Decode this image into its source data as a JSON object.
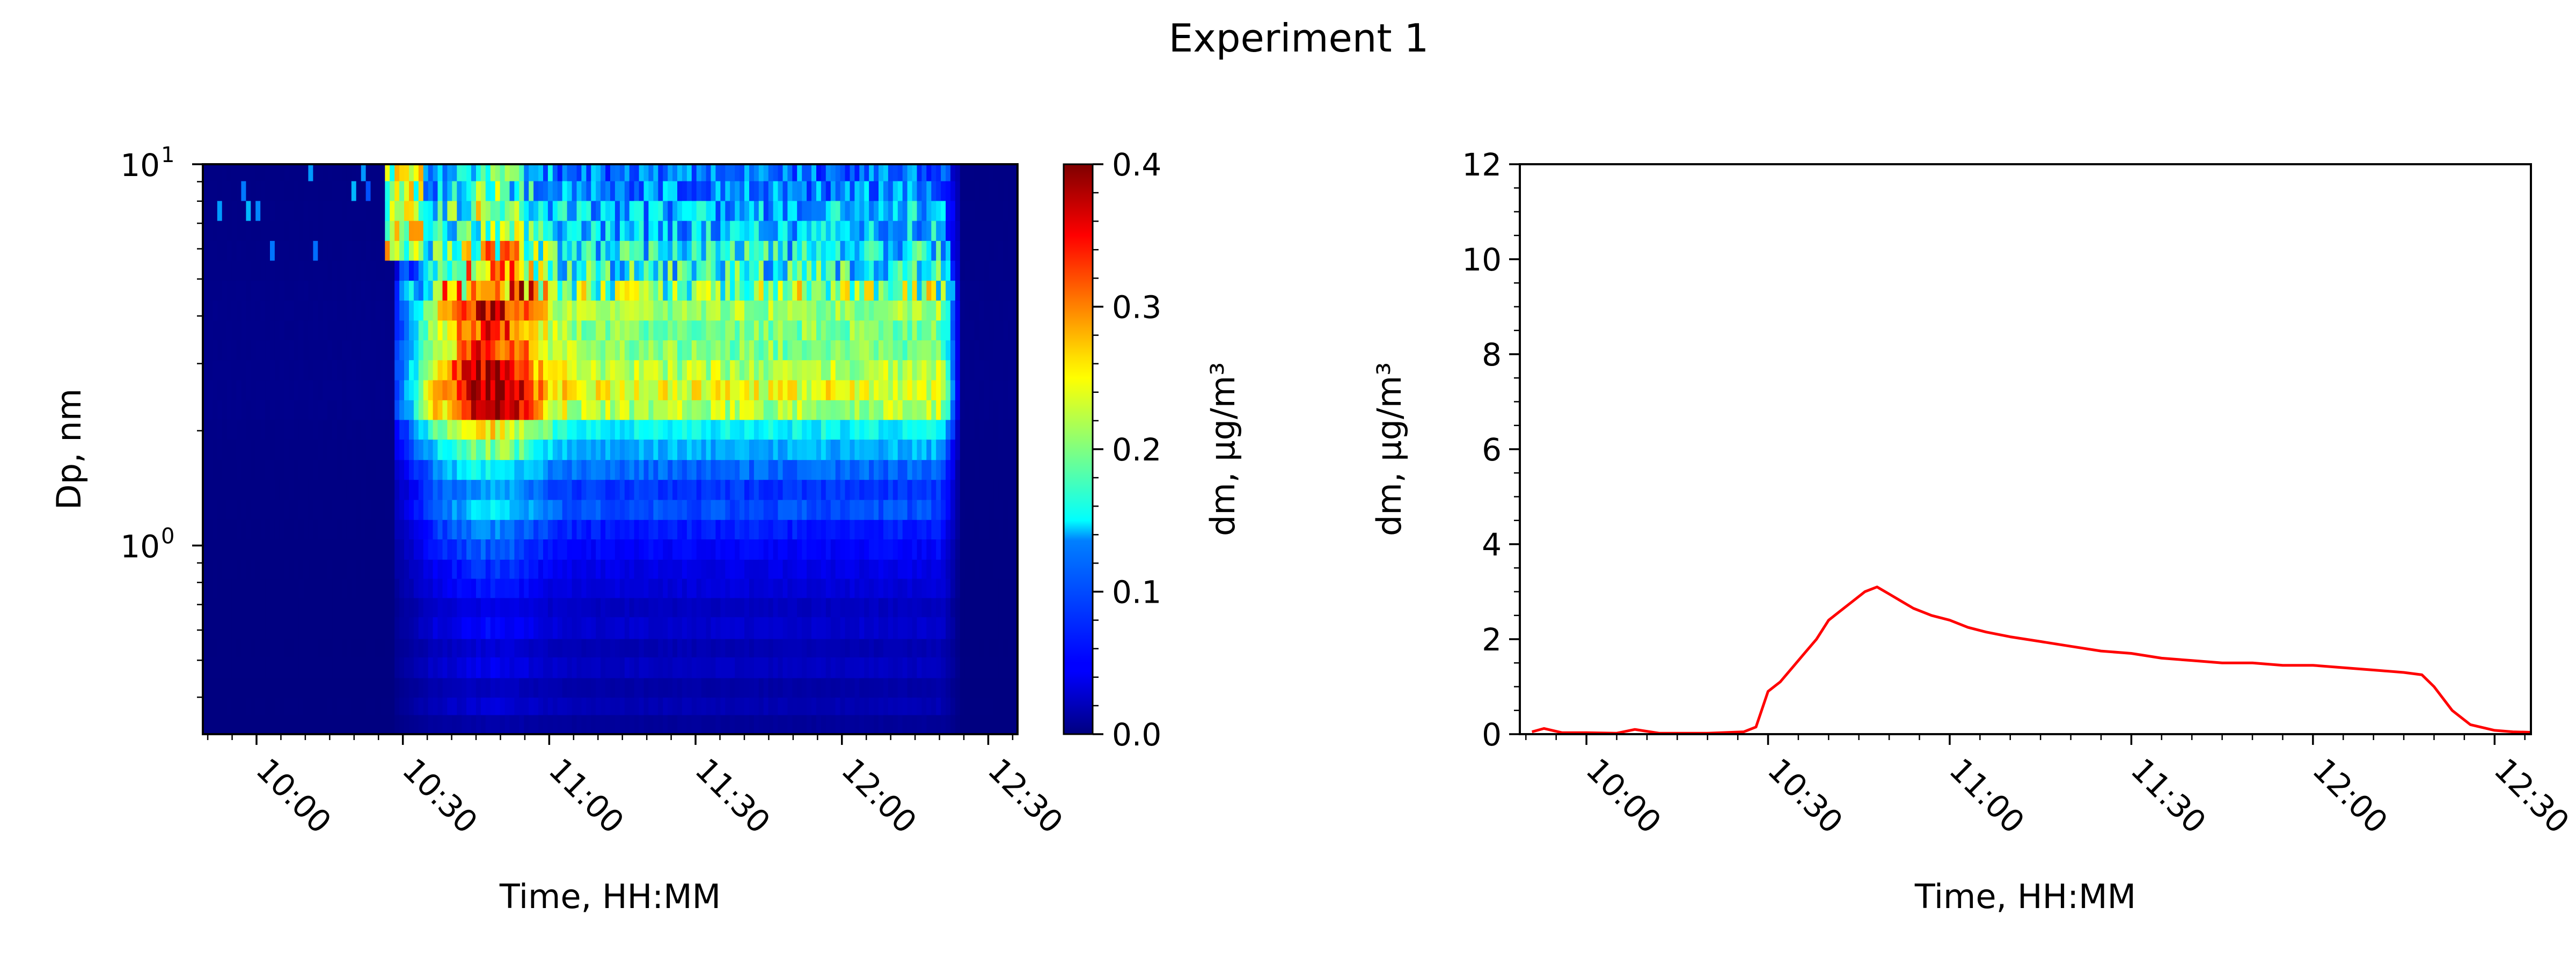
{
  "figure": {
    "title": "Experiment 1"
  },
  "chart_data": [
    {
      "type": "heatmap",
      "xlabel": "Time, HH:MM",
      "ylabel": "Dp, nm",
      "x_tick_labels": [
        "10:00",
        "10:30",
        "11:00",
        "11:30",
        "12:00",
        "12:30"
      ],
      "x_range": [
        "09:49",
        "12:36"
      ],
      "y_scale": "log",
      "ylim": [
        0.32,
        10
      ],
      "y_tick_labels": [
        {
          "value": 1,
          "base": "10",
          "exp": "0"
        },
        {
          "value": 10,
          "base": "10",
          "exp": "1"
        }
      ],
      "y_bins": [
        0.32,
        0.36,
        0.4,
        0.45,
        0.51,
        0.57,
        0.65,
        0.73,
        0.82,
        0.92,
        1.04,
        1.17,
        1.32,
        1.49,
        1.68,
        1.9,
        2.14,
        2.41,
        2.72,
        3.07,
        3.46,
        3.9,
        4.4,
        4.96,
        5.6,
        6.31,
        7.12,
        8.03,
        9.05,
        10.0
      ],
      "row_means": [
        0.01,
        0.02,
        0.015,
        0.025,
        0.02,
        0.03,
        0.025,
        0.035,
        0.04,
        0.05,
        0.06,
        0.08,
        0.07,
        0.09,
        0.12,
        0.15,
        0.22,
        0.24,
        0.22,
        0.2,
        0.2,
        0.21,
        0.19,
        0.15,
        0.14,
        0.12,
        0.12,
        0.1,
        0.09
      ],
      "peak_time": "10:48",
      "active_window": [
        "10:30",
        "12:20"
      ],
      "colorbar": {
        "label": "dm, μg/m³",
        "range": [
          0,
          0.4
        ],
        "ticks": [
          "0.0",
          "0.1",
          "0.2",
          "0.3",
          "0.4"
        ],
        "colormap": "jet"
      }
    },
    {
      "type": "line",
      "xlabel": "Time, HH:MM",
      "ylabel": "dm, μg/m³",
      "x_tick_labels": [
        "10:00",
        "10:30",
        "11:00",
        "11:30",
        "12:00",
        "12:30"
      ],
      "x_range": [
        "09:49",
        "12:36"
      ],
      "ylim": [
        0,
        12
      ],
      "y_ticks": [
        "0",
        "2",
        "4",
        "6",
        "8",
        "10",
        "12"
      ],
      "color": "#ff0000",
      "series": [
        {
          "x": [
            "09:51",
            "09:53",
            "09:56",
            "10:00",
            "10:05",
            "10:08",
            "10:12",
            "10:20",
            "10:26",
            "10:28",
            "10:30",
            "10:32",
            "10:34",
            "10:36",
            "10:38",
            "10:40",
            "10:42",
            "10:44",
            "10:46",
            "10:48",
            "10:50",
            "10:52",
            "10:54",
            "10:57",
            "11:00",
            "11:03",
            "11:06",
            "11:10",
            "11:15",
            "11:20",
            "11:25",
            "11:30",
            "11:35",
            "11:40",
            "11:45",
            "11:50",
            "11:55",
            "12:00",
            "12:05",
            "12:10",
            "12:15",
            "12:18",
            "12:20",
            "12:23",
            "12:26",
            "12:30",
            "12:33",
            "12:36"
          ],
          "y": [
            0.05,
            0.12,
            0.03,
            0.03,
            0.02,
            0.1,
            0.02,
            0.02,
            0.05,
            0.15,
            0.9,
            1.1,
            1.4,
            1.7,
            2.0,
            2.4,
            2.6,
            2.8,
            3.0,
            3.1,
            2.95,
            2.8,
            2.65,
            2.5,
            2.4,
            2.25,
            2.15,
            2.05,
            1.95,
            1.85,
            1.75,
            1.7,
            1.6,
            1.55,
            1.5,
            1.5,
            1.45,
            1.45,
            1.4,
            1.35,
            1.3,
            1.25,
            1.0,
            0.5,
            0.2,
            0.08,
            0.05,
            0.04
          ]
        }
      ]
    }
  ]
}
